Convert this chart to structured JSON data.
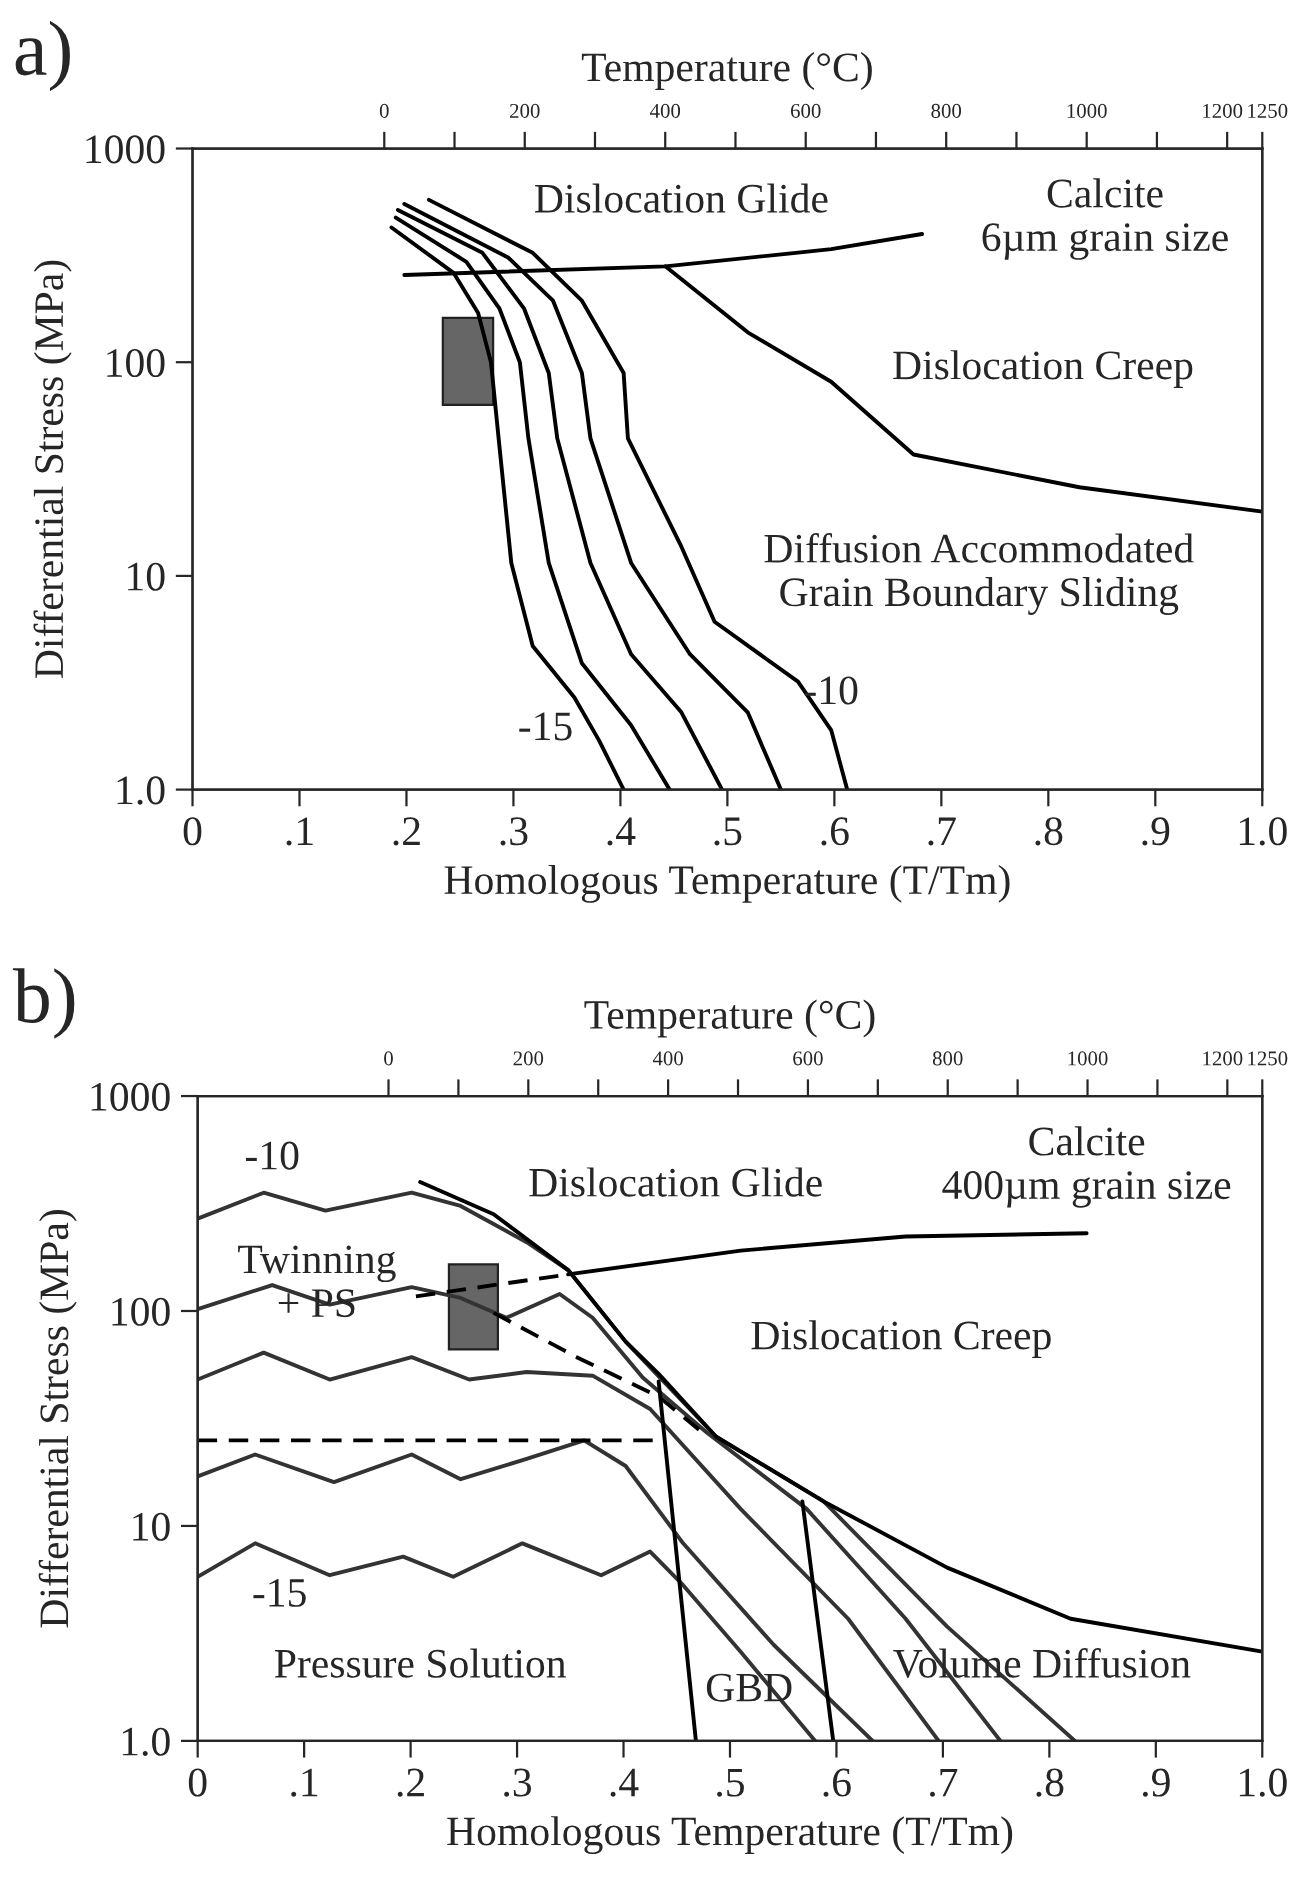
{
  "chart_data": [
    {
      "type": "line",
      "title": "a)",
      "xlabel": "Homologous Temperature (T/Tm)",
      "ylabel": "Differential Stress (MPa)",
      "x2label": "Temperature (°C)",
      "log": "y",
      "grid": false,
      "legend": false,
      "xlim": [
        0,
        1.0
      ],
      "xticks": [
        {
          "value": 0,
          "label": "0"
        },
        {
          "value": 0.1,
          "label": ".1"
        },
        {
          "value": 0.2,
          "label": ".2"
        },
        {
          "value": 0.3,
          "label": ".3"
        },
        {
          "value": 0.4,
          "label": ".4"
        },
        {
          "value": 0.5,
          "label": ".5"
        },
        {
          "value": 0.6,
          "label": ".6"
        },
        {
          "value": 0.7,
          "label": ".7"
        },
        {
          "value": 0.8,
          "label": ".8"
        },
        {
          "value": 0.9,
          "label": ".9"
        },
        {
          "value": 1.0,
          "label": "1.0"
        }
      ],
      "ylim": [
        1,
        1000
      ],
      "yticks": [
        {
          "value": 1,
          "label": "1.0"
        },
        10,
        100,
        1000
      ],
      "x2lim": [
        -273,
        1250
      ],
      "x2ticks": [
        0,
        {
          "value": 100,
          "label": null
        },
        200,
        {
          "value": 300,
          "label": null
        },
        400,
        {
          "value": 500,
          "label": null
        },
        600,
        {
          "value": 700,
          "label": null
        },
        800,
        {
          "value": 900,
          "label": null
        },
        1000,
        {
          "value": 1100,
          "label": null
        },
        1200,
        1250
      ],
      "series": [
        {
          "type": "line",
          "color": "#000000",
          "x": [
            0.186,
            0.244,
            0.267,
            0.279,
            0.287,
            0.298,
            0.318,
            0.357,
            0.38,
            0.403
          ],
          "values": [
            427,
            262,
            170,
            100,
            40,
            11.5,
            4.7,
            2.7,
            1.7,
            1.0
          ]
        },
        {
          "type": "line",
          "color": "#000000",
          "x": [
            0.19,
            0.256,
            0.287,
            0.306,
            0.314,
            0.333,
            0.364,
            0.41,
            0.446
          ],
          "values": [
            475,
            295,
            178,
            100,
            44,
            11.5,
            3.9,
            2.0,
            1.0
          ]
        },
        {
          "type": "line",
          "color": "#000000",
          "x": [
            0.192,
            0.271,
            0.31,
            0.333,
            0.341,
            0.372,
            0.41,
            0.457,
            0.495
          ],
          "values": [
            516,
            325,
            178,
            89,
            44,
            11.5,
            4.3,
            2.3,
            1.0
          ]
        },
        {
          "type": "line",
          "color": "#000000",
          "x": [
            0.198,
            0.295,
            0.337,
            0.364,
            0.372,
            0.41,
            0.465,
            0.519,
            0.55
          ],
          "values": [
            550,
            309,
            194,
            89,
            44,
            11.5,
            4.3,
            2.3,
            1.0
          ]
        },
        {
          "type": "line",
          "color": "#000000",
          "x": [
            0.221,
            0.318,
            0.364,
            0.403,
            0.407,
            0.457,
            0.488,
            0.566,
            0.597,
            0.612
          ],
          "values": [
            575,
            325,
            194,
            89,
            44,
            13.7,
            6.1,
            3.2,
            1.9,
            1.0
          ]
        },
        {
          "type": "line",
          "color": "#000000",
          "x": [
            0.198,
            0.442,
            0.597,
            0.682
          ],
          "values": [
            256,
            281,
            338,
            398
          ]
        },
        {
          "color": "#000000",
          "x": [
            0.442,
            0.519,
            0.597,
            0.674,
            0.829,
            1.0
          ],
          "values": [
            281,
            138,
            81,
            37,
            26,
            20
          ]
        }
      ],
      "annotations": [
        "Dislocation Glide",
        "Calcite\n6µm grain size",
        "Dislocation Creep",
        "Diffusion Accommodated\nGrain Boundary Sliding",
        "-15",
        "-10"
      ]
    },
    {
      "type": "line",
      "title": "b)",
      "xlabel": "Homologous Temperature (T/Tm)",
      "ylabel": "Differential Stress (MPa)",
      "x2label": "Temperature (°C)",
      "log": "y",
      "grid": false,
      "legend": false,
      "xlim": [
        0,
        1.0
      ],
      "xticks": [
        {
          "value": 0,
          "label": "0"
        },
        {
          "value": 0.1,
          "label": ".1"
        },
        {
          "value": 0.2,
          "label": ".2"
        },
        {
          "value": 0.3,
          "label": ".3"
        },
        {
          "value": 0.4,
          "label": ".4"
        },
        {
          "value": 0.5,
          "label": ".5"
        },
        {
          "value": 0.6,
          "label": ".6"
        },
        {
          "value": 0.7,
          "label": ".7"
        },
        {
          "value": 0.8,
          "label": ".8"
        },
        {
          "value": 0.9,
          "label": ".9"
        },
        {
          "value": 1.0,
          "label": "1.0"
        }
      ],
      "ylim": [
        1,
        1000
      ],
      "yticks": [
        {
          "value": 1,
          "label": "1.0"
        },
        10,
        100,
        1000
      ],
      "x2lim": [
        -273,
        1250
      ],
      "x2ticks": [
        0,
        {
          "value": 100,
          "label": null
        },
        200,
        {
          "value": 300,
          "label": null
        },
        400,
        {
          "value": 500,
          "label": null
        },
        600,
        {
          "value": 700,
          "label": null
        },
        800,
        {
          "value": 900,
          "label": null
        },
        1000,
        {
          "value": 1100,
          "label": null
        },
        1200,
        1250
      ],
      "series": [
        {
          "type": "line",
          "color": "#333333",
          "x": [
            0,
            0.062,
            0.12,
            0.201,
            0.247,
            0.309,
            0.348,
            0.402,
            0.487,
            0.588,
            0.704,
            0.824
          ],
          "values": [
            269,
            355,
            293,
            355,
            308,
            209,
            155,
            72,
            26,
            13,
            3.4,
            1.0
          ]
        },
        {
          "type": "line",
          "color": "#333333",
          "x": [
            0,
            0.07,
            0.124,
            0.201,
            0.247,
            0.29,
            0.34,
            0.371,
            0.418,
            0.479,
            0.572,
            0.665,
            0.754
          ],
          "values": [
            102,
            132,
            107,
            129,
            115,
            93,
            120,
            93,
            49,
            27,
            12,
            3.7,
            1.0
          ]
        },
        {
          "type": "line",
          "color": "#333333",
          "x": [
            0,
            0.062,
            0.124,
            0.201,
            0.255,
            0.309,
            0.371,
            0.425,
            0.51,
            0.611,
            0.696
          ],
          "values": [
            48,
            64,
            48,
            61,
            48,
            52,
            50,
            35,
            12,
            3.7,
            1.0
          ]
        },
        {
          "type": "line",
          "color": "#333333",
          "x": [
            0,
            0.054,
            0.128,
            0.201,
            0.247,
            0.309,
            0.363,
            0.402,
            0.456,
            0.541,
            0.634
          ],
          "values": [
            17,
            21.5,
            16,
            21.5,
            16.5,
            20.5,
            25,
            19,
            8.3,
            2.8,
            1.0
          ]
        },
        {
          "type": "line",
          "color": "#333333",
          "x": [
            0,
            0.054,
            0.124,
            0.193,
            0.24,
            0.305,
            0.379,
            0.425,
            0.456,
            0.51,
            0.58
          ],
          "values": [
            5.8,
            8.3,
            5.9,
            7.2,
            5.8,
            8.3,
            5.9,
            7.6,
            5.3,
            2.6,
            1.0
          ]
        },
        {
          "type": "line",
          "color": "#000000",
          "x": [
            0.209,
            0.278,
            0.348,
            0.402,
            0.433,
            0.487,
            0.588,
            0.704,
            0.82,
            1.0
          ],
          "values": [
            398,
            282,
            155,
            72,
            51,
            26,
            13,
            6.4,
            3.7,
            2.6
          ]
        },
        {
          "type": "line",
          "color": "#000000",
          "x": [
            0.348,
            0.51,
            0.665,
            0.835
          ],
          "values": [
            148,
            191,
            222,
            230
          ]
        },
        {
          "type": "line",
          "color": "#000000",
          "line_style": "dashed",
          "x": [
            0.205,
            0.348
          ],
          "values": [
            117,
            148
          ]
        },
        {
          "type": "line",
          "color": "#000000",
          "line_style": "dashed",
          "x": [
            0.278,
            0.356,
            0.433,
            0.479
          ],
          "values": [
            98,
            61,
            40,
            26
          ]
        },
        {
          "type": "line",
          "color": "#000000",
          "line_style": "dashed",
          "x": [
            0,
            0.433
          ],
          "values": [
            25,
            25
          ]
        },
        {
          "type": "line",
          "color": "#000000",
          "x": [
            0.433,
            0.468
          ],
          "values": [
            47,
            1.0
          ]
        },
        {
          "color": "#000000",
          "x": [
            0.568,
            0.597
          ],
          "values": [
            13,
            1.0
          ]
        }
      ],
      "annotations": [
        "-10",
        "Dislocation Glide",
        "Calcite\n400µm grain size",
        "Twinning\n+ PS",
        "Dislocation Creep",
        "-15",
        "Pressure Solution",
        "GBD",
        "Volume Diffusion"
      ]
    }
  ]
}
